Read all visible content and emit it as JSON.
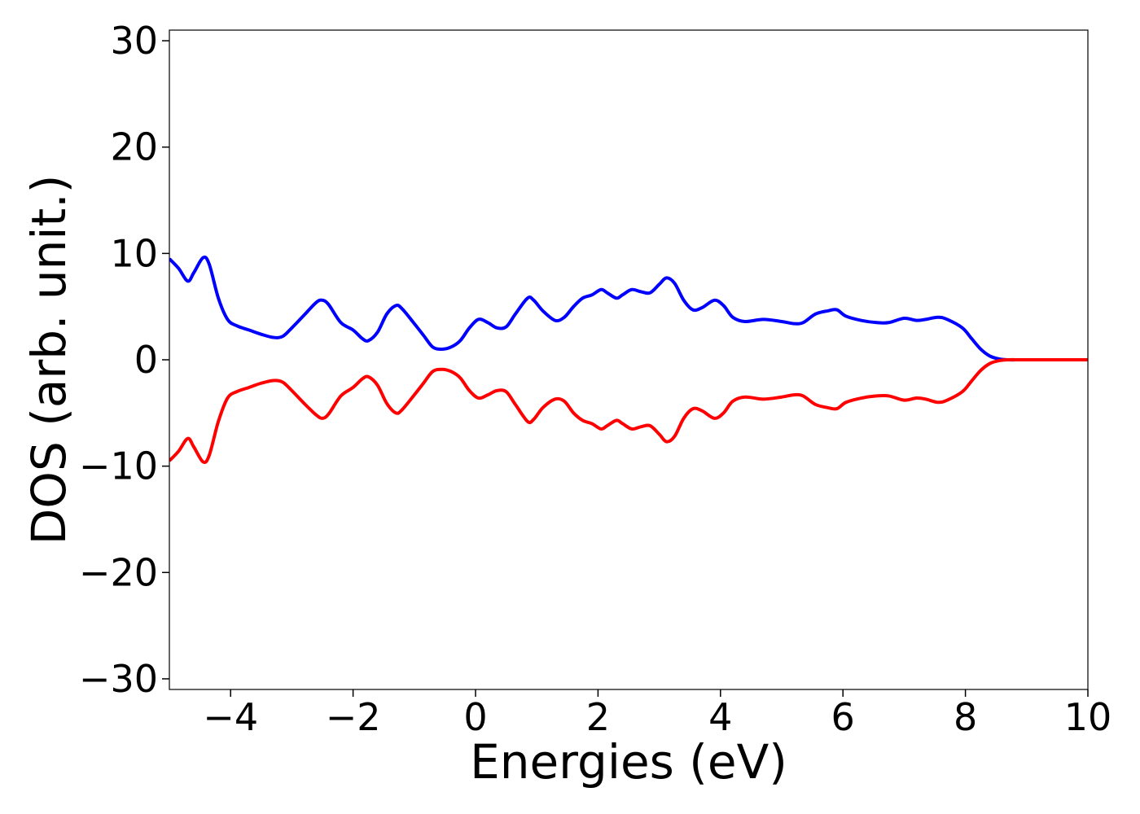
{
  "chart_data": {
    "type": "line",
    "title": "",
    "xlabel": "Energies (eV)",
    "ylabel": "DOS (arb. unit.)",
    "xlim": [
      -5,
      10
    ],
    "ylim": [
      -31,
      31
    ],
    "grid": false,
    "x_ticks": [
      -4,
      -2,
      0,
      2,
      4,
      6,
      8,
      10
    ],
    "y_ticks": [
      -30,
      -20,
      -10,
      0,
      10,
      20,
      30
    ],
    "x_tick_labels": [
      "−4",
      "−2",
      "0",
      "2",
      "4",
      "6",
      "8",
      "10"
    ],
    "y_tick_labels": [
      "−30",
      "−20",
      "−10",
      "0",
      "10",
      "20",
      "30"
    ],
    "series": [
      {
        "color": "#0000ff",
        "points": [
          [
            -5.0,
            9.5
          ],
          [
            -4.85,
            8.6
          ],
          [
            -4.7,
            7.4
          ],
          [
            -4.6,
            8.2
          ],
          [
            -4.45,
            9.6
          ],
          [
            -4.35,
            9.0
          ],
          [
            -4.2,
            5.8
          ],
          [
            -4.05,
            3.8
          ],
          [
            -3.9,
            3.2
          ],
          [
            -3.7,
            2.8
          ],
          [
            -3.5,
            2.4
          ],
          [
            -3.3,
            2.1
          ],
          [
            -3.15,
            2.2
          ],
          [
            -3.0,
            3.0
          ],
          [
            -2.8,
            4.2
          ],
          [
            -2.6,
            5.4
          ],
          [
            -2.5,
            5.6
          ],
          [
            -2.4,
            5.2
          ],
          [
            -2.2,
            3.5
          ],
          [
            -2.0,
            2.8
          ],
          [
            -1.85,
            2.0
          ],
          [
            -1.75,
            1.8
          ],
          [
            -1.6,
            2.6
          ],
          [
            -1.45,
            4.3
          ],
          [
            -1.3,
            5.1
          ],
          [
            -1.2,
            4.8
          ],
          [
            -1.0,
            3.4
          ],
          [
            -0.85,
            2.3
          ],
          [
            -0.7,
            1.2
          ],
          [
            -0.55,
            1.0
          ],
          [
            -0.4,
            1.2
          ],
          [
            -0.25,
            1.8
          ],
          [
            -0.1,
            3.0
          ],
          [
            0.05,
            3.8
          ],
          [
            0.2,
            3.5
          ],
          [
            0.35,
            3.0
          ],
          [
            0.5,
            3.1
          ],
          [
            0.65,
            4.3
          ],
          [
            0.85,
            5.8
          ],
          [
            0.95,
            5.6
          ],
          [
            1.1,
            4.6
          ],
          [
            1.3,
            3.7
          ],
          [
            1.45,
            4.0
          ],
          [
            1.6,
            5.0
          ],
          [
            1.75,
            5.8
          ],
          [
            1.9,
            6.1
          ],
          [
            2.05,
            6.6
          ],
          [
            2.15,
            6.3
          ],
          [
            2.3,
            5.8
          ],
          [
            2.4,
            6.1
          ],
          [
            2.55,
            6.6
          ],
          [
            2.7,
            6.4
          ],
          [
            2.85,
            6.3
          ],
          [
            3.0,
            7.1
          ],
          [
            3.12,
            7.7
          ],
          [
            3.25,
            7.2
          ],
          [
            3.4,
            5.6
          ],
          [
            3.55,
            4.7
          ],
          [
            3.7,
            4.9
          ],
          [
            3.9,
            5.6
          ],
          [
            4.05,
            5.1
          ],
          [
            4.2,
            4.0
          ],
          [
            4.4,
            3.6
          ],
          [
            4.7,
            3.8
          ],
          [
            5.0,
            3.6
          ],
          [
            5.2,
            3.4
          ],
          [
            5.35,
            3.5
          ],
          [
            5.55,
            4.3
          ],
          [
            5.75,
            4.6
          ],
          [
            5.9,
            4.7
          ],
          [
            6.05,
            4.1
          ],
          [
            6.3,
            3.7
          ],
          [
            6.55,
            3.5
          ],
          [
            6.75,
            3.5
          ],
          [
            7.0,
            3.9
          ],
          [
            7.2,
            3.7
          ],
          [
            7.35,
            3.8
          ],
          [
            7.55,
            4.0
          ],
          [
            7.7,
            3.8
          ],
          [
            7.95,
            3.0
          ],
          [
            8.1,
            2.0
          ],
          [
            8.25,
            1.0
          ],
          [
            8.4,
            0.35
          ],
          [
            8.55,
            0.08
          ],
          [
            8.7,
            0.0
          ],
          [
            9.0,
            0.0
          ],
          [
            10.0,
            0.0
          ]
        ]
      },
      {
        "color": "#ff0000",
        "points": [
          [
            -5.0,
            -9.5
          ],
          [
            -4.85,
            -8.6
          ],
          [
            -4.7,
            -7.4
          ],
          [
            -4.6,
            -8.2
          ],
          [
            -4.45,
            -9.6
          ],
          [
            -4.35,
            -9.0
          ],
          [
            -4.2,
            -5.8
          ],
          [
            -4.05,
            -3.6
          ],
          [
            -3.9,
            -3.0
          ],
          [
            -3.7,
            -2.6
          ],
          [
            -3.5,
            -2.2
          ],
          [
            -3.3,
            -1.95
          ],
          [
            -3.15,
            -2.1
          ],
          [
            -3.0,
            -2.9
          ],
          [
            -2.8,
            -4.1
          ],
          [
            -2.6,
            -5.2
          ],
          [
            -2.5,
            -5.5
          ],
          [
            -2.4,
            -5.1
          ],
          [
            -2.2,
            -3.4
          ],
          [
            -2.0,
            -2.6
          ],
          [
            -1.85,
            -1.8
          ],
          [
            -1.75,
            -1.6
          ],
          [
            -1.6,
            -2.4
          ],
          [
            -1.45,
            -4.1
          ],
          [
            -1.3,
            -5.0
          ],
          [
            -1.2,
            -4.7
          ],
          [
            -1.0,
            -3.3
          ],
          [
            -0.85,
            -2.2
          ],
          [
            -0.7,
            -1.1
          ],
          [
            -0.55,
            -0.9
          ],
          [
            -0.4,
            -1.1
          ],
          [
            -0.25,
            -1.7
          ],
          [
            -0.1,
            -2.9
          ],
          [
            0.05,
            -3.6
          ],
          [
            0.2,
            -3.3
          ],
          [
            0.35,
            -2.9
          ],
          [
            0.5,
            -3.0
          ],
          [
            0.65,
            -4.2
          ],
          [
            0.85,
            -5.8
          ],
          [
            0.95,
            -5.6
          ],
          [
            1.1,
            -4.5
          ],
          [
            1.3,
            -3.7
          ],
          [
            1.45,
            -3.9
          ],
          [
            1.6,
            -5.0
          ],
          [
            1.75,
            -5.7
          ],
          [
            1.9,
            -6.0
          ],
          [
            2.05,
            -6.5
          ],
          [
            2.15,
            -6.2
          ],
          [
            2.3,
            -5.7
          ],
          [
            2.4,
            -6.0
          ],
          [
            2.55,
            -6.5
          ],
          [
            2.7,
            -6.3
          ],
          [
            2.85,
            -6.2
          ],
          [
            3.0,
            -7.0
          ],
          [
            3.12,
            -7.7
          ],
          [
            3.25,
            -7.2
          ],
          [
            3.4,
            -5.5
          ],
          [
            3.55,
            -4.6
          ],
          [
            3.7,
            -4.8
          ],
          [
            3.9,
            -5.5
          ],
          [
            4.05,
            -5.0
          ],
          [
            4.2,
            -3.9
          ],
          [
            4.4,
            -3.5
          ],
          [
            4.7,
            -3.7
          ],
          [
            5.0,
            -3.5
          ],
          [
            5.2,
            -3.3
          ],
          [
            5.35,
            -3.4
          ],
          [
            5.55,
            -4.2
          ],
          [
            5.75,
            -4.5
          ],
          [
            5.9,
            -4.6
          ],
          [
            6.05,
            -4.0
          ],
          [
            6.3,
            -3.6
          ],
          [
            6.55,
            -3.4
          ],
          [
            6.75,
            -3.4
          ],
          [
            7.0,
            -3.8
          ],
          [
            7.2,
            -3.6
          ],
          [
            7.35,
            -3.7
          ],
          [
            7.55,
            -4.0
          ],
          [
            7.7,
            -3.8
          ],
          [
            7.95,
            -3.0
          ],
          [
            8.1,
            -2.0
          ],
          [
            8.25,
            -1.0
          ],
          [
            8.4,
            -0.35
          ],
          [
            8.55,
            -0.08
          ],
          [
            8.7,
            0.0
          ],
          [
            9.0,
            0.0
          ],
          [
            10.0,
            0.0
          ]
        ]
      }
    ]
  }
}
